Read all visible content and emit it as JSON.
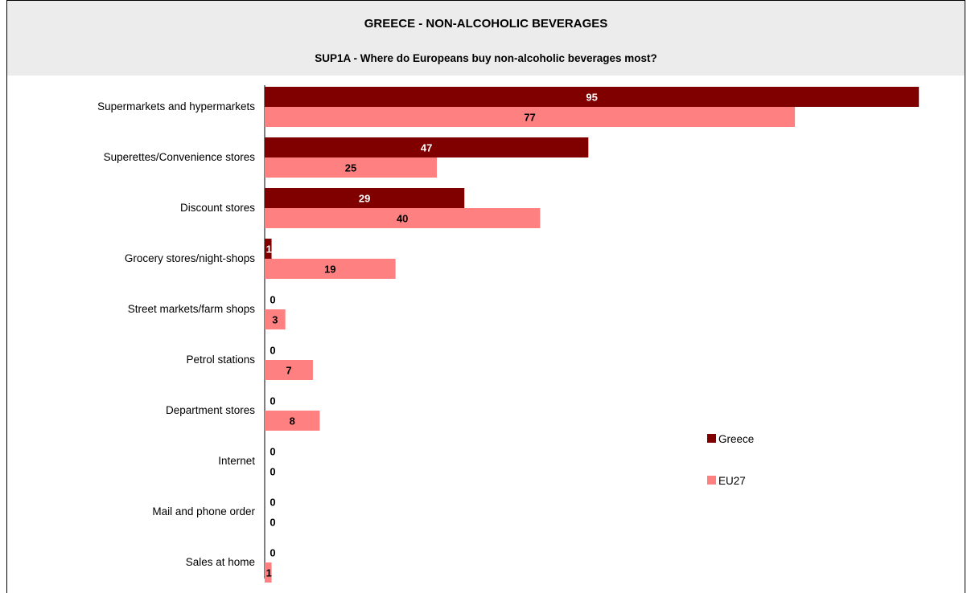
{
  "header": {
    "title": "GREECE - NON-ALCOHOLIC BEVERAGES",
    "subtitle": "SUP1A - Where do Europeans buy non-alcoholic beverages most?"
  },
  "colors": {
    "greece": "#800000",
    "eu27": "#ff8080",
    "header_bg": "#ececec"
  },
  "chart_data": {
    "type": "bar",
    "orientation": "horizontal",
    "title": "GREECE - NON-ALCOHOLIC BEVERAGES",
    "subtitle": "SUP1A - Where do Europeans buy non-alcoholic beverages most?",
    "categories": [
      "Supermarkets and hypermarkets",
      "Superettes/Convenience stores",
      "Discount stores",
      "Grocery stores/night-shops",
      "Street markets/farm shops",
      "Petrol stations",
      "Department stores",
      "Internet",
      "Mail and phone order",
      "Sales at home"
    ],
    "series": [
      {
        "name": "Greece",
        "values": [
          95,
          47,
          29,
          1,
          0,
          0,
          0,
          0,
          0,
          0
        ]
      },
      {
        "name": "EU27",
        "values": [
          77,
          25,
          40,
          19,
          3,
          7,
          8,
          0,
          0,
          1
        ]
      }
    ],
    "xlim": [
      0,
      95
    ],
    "grid": false,
    "legend_position": "right"
  }
}
